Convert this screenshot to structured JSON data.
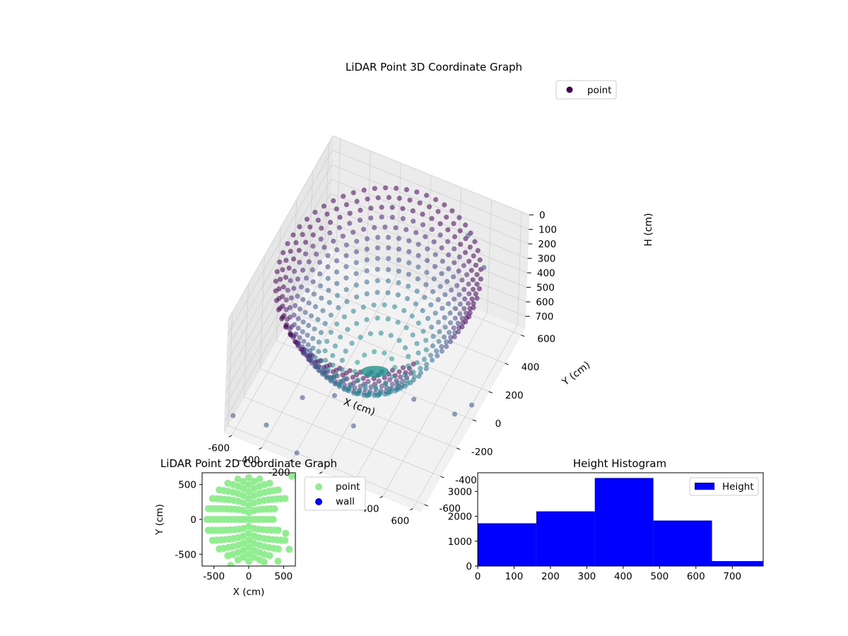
{
  "chart_data": [
    {
      "type": "scatter",
      "projection": "3d",
      "title": "LiDAR Point 3D Coordinate Graph",
      "xlabel": "X (cm)",
      "ylabel": "Y (cm)",
      "zlabel": "H (cm)",
      "x_ticks": [
        -600,
        -400,
        -200,
        0,
        200,
        400,
        600
      ],
      "y_ticks": [
        -600,
        -400,
        -200,
        0,
        200,
        400,
        600
      ],
      "z_ticks": [
        0,
        100,
        200,
        300,
        400,
        500,
        600,
        700
      ],
      "xlim": [
        -650,
        650
      ],
      "ylim": [
        -650,
        650
      ],
      "zlim": [
        0,
        780
      ],
      "z_inverted": true,
      "grid": true,
      "colormap": "viridis",
      "legend": {
        "placement": "top-right",
        "entries": [
          {
            "label": "point",
            "color": "#440154"
          }
        ]
      },
      "series": [
        {
          "name": "point",
          "shape": "bowl point cloud: dense rim near H≈100 cm at radius ≈600 cm, inner surface descending to H≈700 cm at the centre, plus scattered outliers",
          "outliers": [
            {
              "x": -620,
              "y": -600,
              "h": 700
            },
            {
              "x": -420,
              "y": -560,
              "h": 720
            },
            {
              "x": -260,
              "y": -420,
              "h": 600
            },
            {
              "x": -170,
              "y": -650,
              "h": 720
            },
            {
              "x": 280,
              "y": 600,
              "h": 250
            },
            {
              "x": 480,
              "y": 420,
              "h": 210
            },
            {
              "x": 320,
              "y": -120,
              "h": 660
            },
            {
              "x": 560,
              "y": -60,
              "h": 720
            },
            {
              "x": 620,
              "y": 40,
              "h": 730
            },
            {
              "x": -330,
              "y": -200,
              "h": 520
            },
            {
              "x": -110,
              "y": -300,
              "h": 640
            },
            {
              "x": 60,
              "y": -380,
              "h": 700
            }
          ]
        }
      ]
    },
    {
      "type": "scatter",
      "title": "LiDAR Point 2D Coordinate Graph",
      "xlabel": "X (cm)",
      "ylabel": "Y (cm)",
      "x_ticks": [
        -500,
        0,
        500
      ],
      "y_ticks": [
        -500,
        0,
        500
      ],
      "xlim": [
        -670,
        670
      ],
      "ylim": [
        -670,
        670
      ],
      "grid": false,
      "legend": {
        "placement": "right-outside",
        "entries": [
          {
            "label": "point",
            "color": "#90ee90"
          },
          {
            "label": "wall",
            "color": "#0000ff"
          }
        ]
      },
      "series": [
        {
          "name": "point",
          "color": "#90ee90",
          "shape": "filled disc of radius ≈600 cm centred at the origin with a gap on the right side",
          "outliers": [
            {
              "x": 620,
              "y": 620
            },
            {
              "x": 580,
              "y": -430
            },
            {
              "x": 420,
              "y": -600
            },
            {
              "x": 220,
              "y": -610
            },
            {
              "x": -260,
              "y": -660
            },
            {
              "x": 530,
              "y": -200
            }
          ]
        },
        {
          "name": "wall",
          "color": "#0000ff",
          "points": []
        }
      ]
    },
    {
      "type": "bar",
      "title": "Height Histogram",
      "xlabel": "",
      "ylabel": "",
      "x_ticks": [
        0,
        100,
        200,
        300,
        400,
        500,
        600,
        700
      ],
      "y_ticks": [
        0,
        1000,
        2000,
        3000
      ],
      "xlim": [
        0,
        785
      ],
      "ylim": [
        0,
        3750
      ],
      "color": "#0000ff",
      "legend": {
        "placement": "top-right",
        "entries": [
          {
            "label": "Height",
            "color": "#0000ff"
          }
        ]
      },
      "bins": [
        {
          "start": 0,
          "end": 161,
          "count": 1720
        },
        {
          "start": 161,
          "end": 322,
          "count": 2200
        },
        {
          "start": 322,
          "end": 483,
          "count": 3540
        },
        {
          "start": 483,
          "end": 644,
          "count": 1830
        },
        {
          "start": 644,
          "end": 785,
          "count": 200
        }
      ]
    }
  ]
}
